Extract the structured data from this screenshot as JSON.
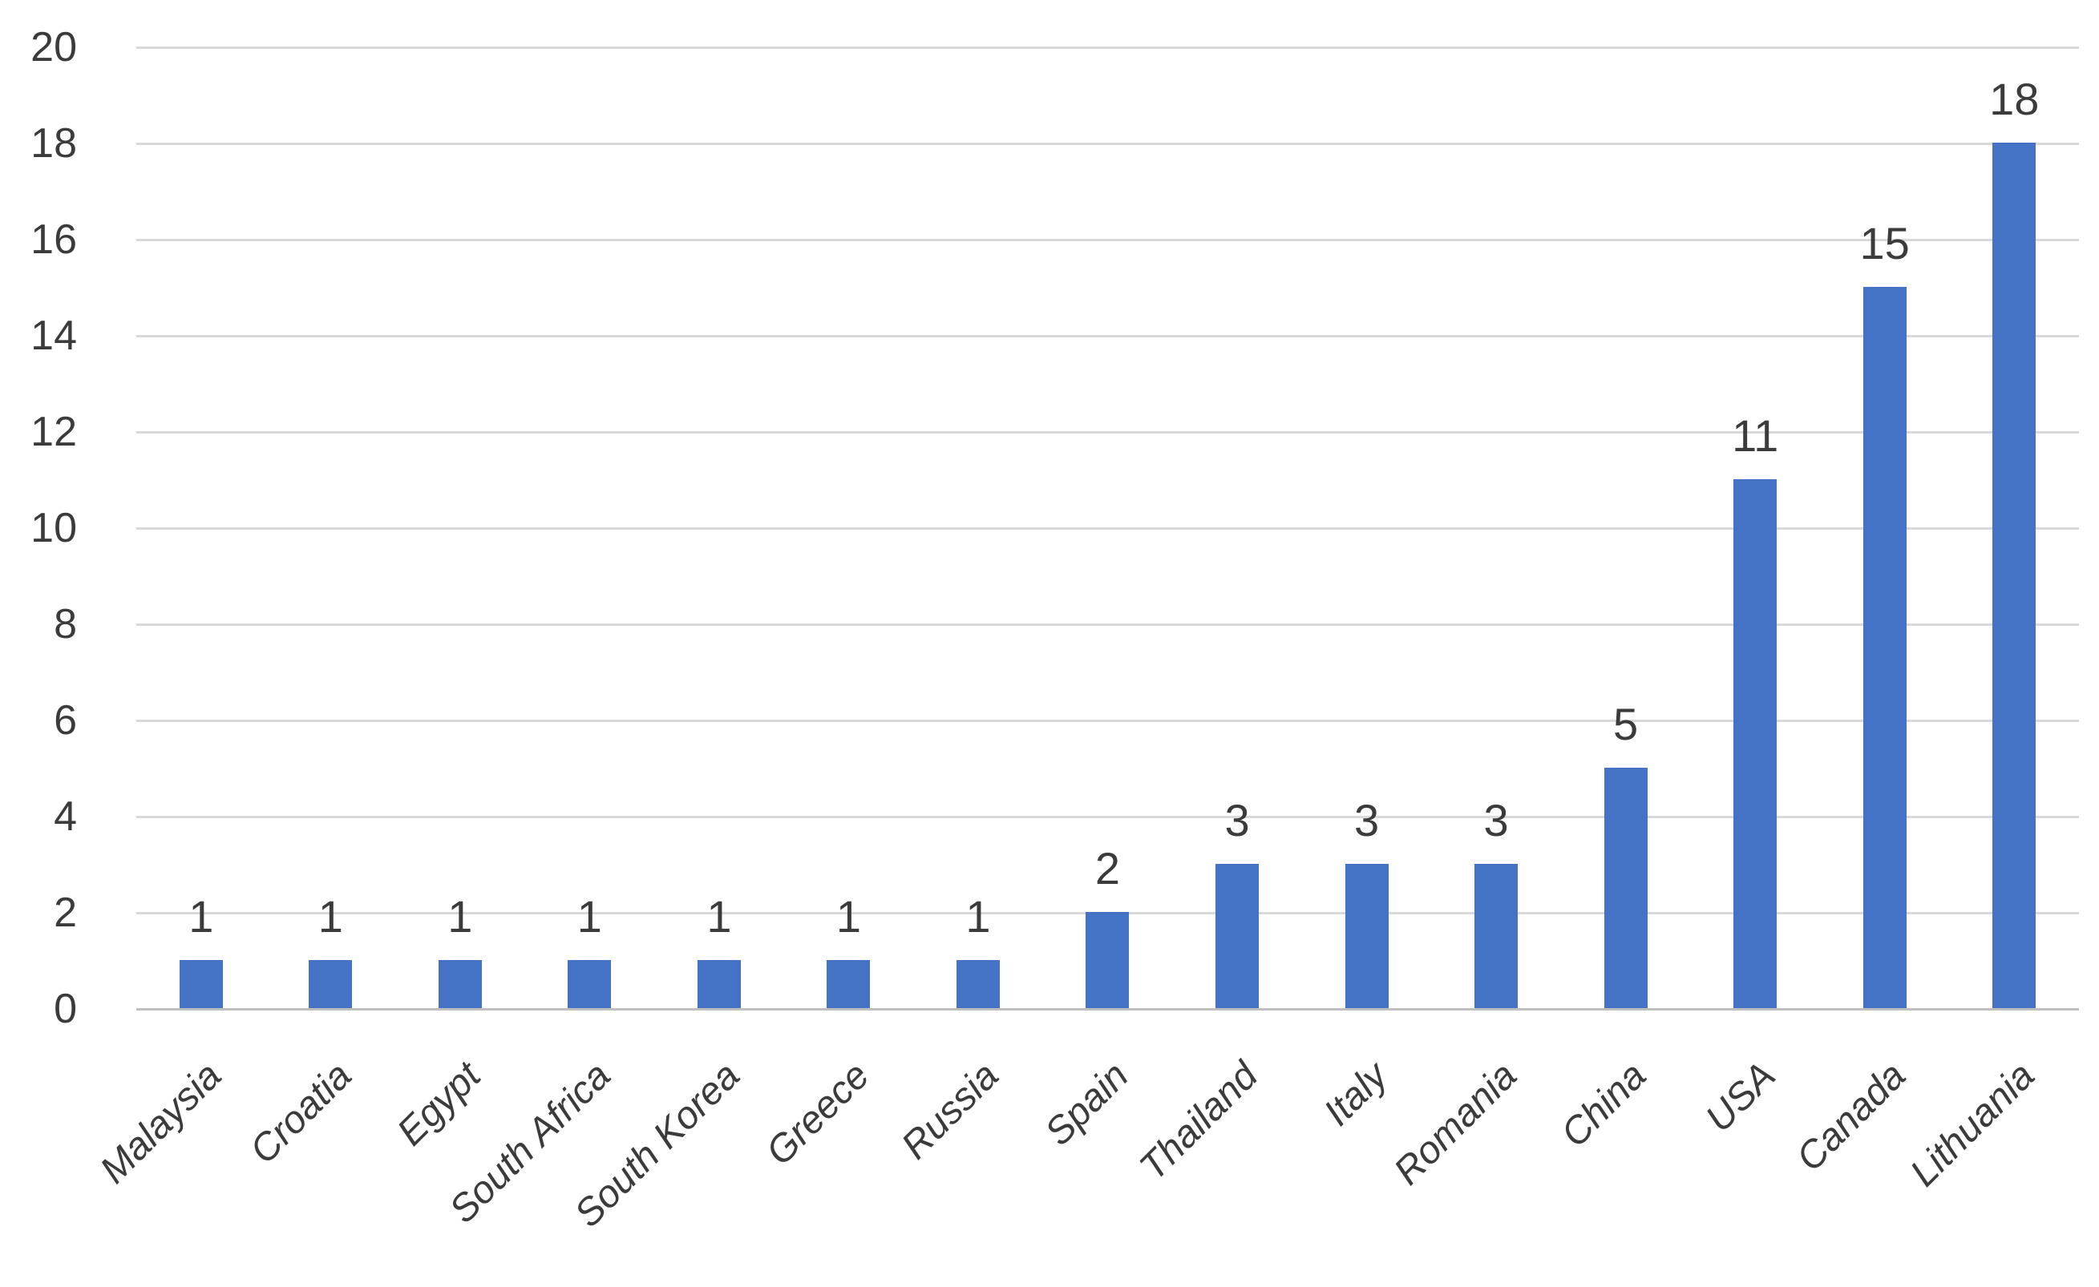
{
  "chart_data": {
    "type": "bar",
    "categories": [
      "Malaysia",
      "Croatia",
      "Egypt",
      "South Africa",
      "South Korea",
      "Greece",
      "Russia",
      "Spain",
      "Thailand",
      "Italy",
      "Romania",
      "China",
      "USA",
      "Canada",
      "Lithuania"
    ],
    "values": [
      1,
      1,
      1,
      1,
      1,
      1,
      1,
      2,
      3,
      3,
      3,
      5,
      11,
      15,
      18
    ],
    "title": "",
    "xlabel": "",
    "ylabel": "",
    "ylim": [
      0,
      20
    ],
    "yticks": [
      0,
      2,
      4,
      6,
      8,
      10,
      12,
      14,
      16,
      18,
      20
    ],
    "grid": true,
    "legend": false,
    "data_labels_shown": true,
    "x_labels_rotation_deg": 45,
    "x_labels_italic": true,
    "colors": {
      "bar": "#4472C4",
      "gridline": "#D9D9D9",
      "axis_line": "#BFBFBF",
      "text": "#3B3B3B"
    }
  }
}
